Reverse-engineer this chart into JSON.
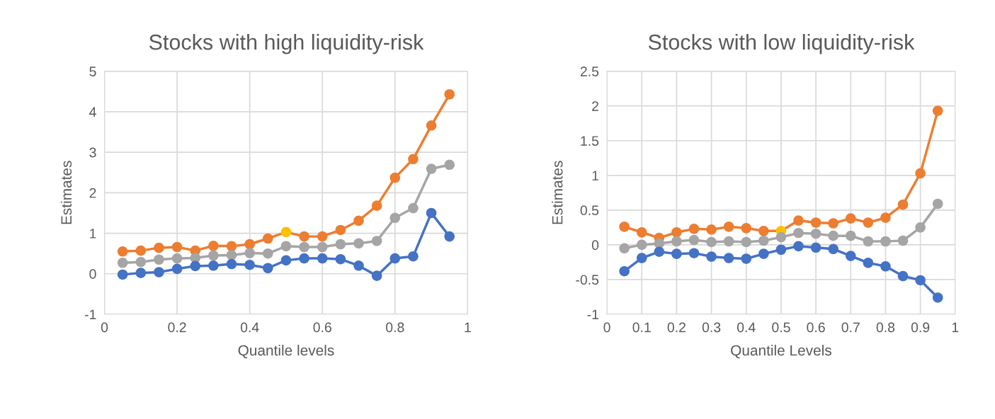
{
  "chart_data": [
    {
      "type": "line",
      "title": "Stocks with high liquidity-risk",
      "xlabel": "Quantile levels",
      "ylabel": "Estimates",
      "x": [
        0.05,
        0.1,
        0.15,
        0.2,
        0.25,
        0.3,
        0.35,
        0.4,
        0.45,
        0.5,
        0.55,
        0.6,
        0.65,
        0.7,
        0.75,
        0.8,
        0.85,
        0.9,
        0.95
      ],
      "xlim": [
        0,
        1
      ],
      "xticks": [
        0,
        0.2,
        0.4,
        0.6,
        0.8,
        1
      ],
      "ylim": [
        -1,
        5
      ],
      "yticks": [
        -1,
        0,
        1,
        2,
        3,
        4,
        5
      ],
      "grid": true,
      "marker": "circle",
      "line_style": "solid",
      "series": [
        {
          "color": "#ed7d31",
          "colors": [
            "#ed7d31",
            "#ed7d31",
            "#ed7d31",
            "#ed7d31",
            "#ed7d31",
            "#ed7d31",
            "#ed7d31",
            "#ed7d31",
            "#ed7d31",
            "#ffc000",
            "#ed7d31",
            "#ed7d31",
            "#ed7d31",
            "#ed7d31",
            "#ed7d31",
            "#ed7d31",
            "#ed7d31",
            "#ed7d31",
            "#ed7d31"
          ],
          "values": [
            0.55,
            0.57,
            0.64,
            0.66,
            0.57,
            0.69,
            0.68,
            0.73,
            0.87,
            1.03,
            0.92,
            0.92,
            1.08,
            1.31,
            1.68,
            2.37,
            2.83,
            3.66,
            4.43
          ]
        },
        {
          "color": "#a5a5a5",
          "values": [
            0.27,
            0.29,
            0.35,
            0.38,
            0.39,
            0.45,
            0.46,
            0.51,
            0.5,
            0.68,
            0.66,
            0.66,
            0.73,
            0.75,
            0.81,
            1.38,
            1.62,
            2.59,
            2.69
          ]
        },
        {
          "color": "#4472c4",
          "values": [
            -0.02,
            0.02,
            0.04,
            0.12,
            0.19,
            0.2,
            0.24,
            0.22,
            0.14,
            0.33,
            0.38,
            0.38,
            0.36,
            0.2,
            -0.05,
            0.38,
            0.43,
            1.5,
            0.92
          ]
        }
      ]
    },
    {
      "type": "line",
      "title": "Stocks with low liquidity-risk",
      "xlabel": "Quantile Levels",
      "ylabel": "Estimates",
      "x": [
        0.05,
        0.1,
        0.15,
        0.2,
        0.25,
        0.3,
        0.35,
        0.4,
        0.45,
        0.5,
        0.55,
        0.6,
        0.65,
        0.7,
        0.75,
        0.8,
        0.85,
        0.9,
        0.95
      ],
      "xlim": [
        0,
        1
      ],
      "xticks": [
        0,
        0.1,
        0.2,
        0.3,
        0.4,
        0.5,
        0.6,
        0.7,
        0.8,
        0.9,
        1
      ],
      "ylim": [
        -1,
        2.5
      ],
      "yticks": [
        -1,
        -0.5,
        0,
        0.5,
        1,
        1.5,
        2,
        2.5
      ],
      "grid": true,
      "marker": "circle",
      "line_style": "solid",
      "series": [
        {
          "color": "#ed7d31",
          "colors": [
            "#ed7d31",
            "#ed7d31",
            "#ed7d31",
            "#ed7d31",
            "#ed7d31",
            "#ed7d31",
            "#ed7d31",
            "#ed7d31",
            "#ed7d31",
            "#ffc000",
            "#ed7d31",
            "#ed7d31",
            "#ed7d31",
            "#ed7d31",
            "#ed7d31",
            "#ed7d31",
            "#ed7d31",
            "#ed7d31",
            "#ed7d31"
          ],
          "values": [
            0.26,
            0.18,
            0.1,
            0.18,
            0.23,
            0.22,
            0.26,
            0.24,
            0.2,
            0.2,
            0.35,
            0.32,
            0.31,
            0.38,
            0.32,
            0.39,
            0.58,
            1.03,
            1.93
          ]
        },
        {
          "color": "#a5a5a5",
          "values": [
            -0.05,
            0.0,
            0.02,
            0.05,
            0.07,
            0.04,
            0.05,
            0.04,
            0.06,
            0.11,
            0.17,
            0.16,
            0.13,
            0.13,
            0.05,
            0.05,
            0.06,
            0.25,
            0.59
          ]
        },
        {
          "color": "#4472c4",
          "values": [
            -0.38,
            -0.19,
            -0.1,
            -0.13,
            -0.12,
            -0.17,
            -0.19,
            -0.2,
            -0.13,
            -0.07,
            -0.02,
            -0.04,
            -0.06,
            -0.16,
            -0.26,
            -0.31,
            -0.45,
            -0.51,
            -0.76
          ]
        }
      ]
    }
  ]
}
